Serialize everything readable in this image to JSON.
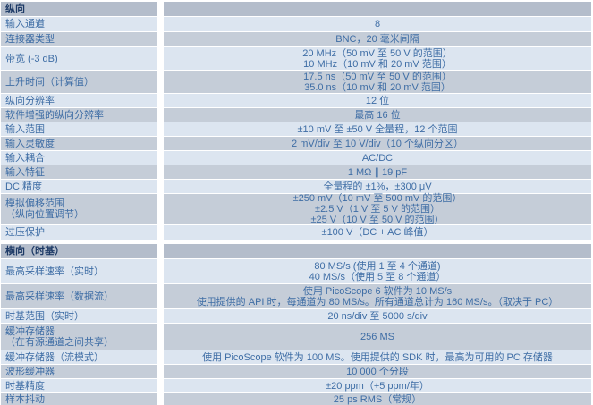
{
  "colors": {
    "header_bg": "#b4bdcb",
    "row_light_bg": "#dce5f0",
    "row_gray_bg": "#c5cdd8",
    "header_text": "#1d3a66",
    "cell_text": "#3e6da5",
    "divider": "#ffffff"
  },
  "sections": [
    {
      "header": "纵向",
      "rows": [
        {
          "label_lines": [
            "输入通道"
          ],
          "value_lines": [
            "8"
          ]
        },
        {
          "label_lines": [
            "连接器类型"
          ],
          "value_lines": [
            "BNC，20 毫米间隔"
          ]
        },
        {
          "label_lines": [
            "带宽 (-3 dB)"
          ],
          "value_lines": [
            "20 MHz（50 mV 至 50 V 的范围）",
            "10 MHz（10 mV 和 20 mV 范围）"
          ]
        },
        {
          "label_lines": [
            "上升时间（计算值）"
          ],
          "value_lines": [
            "17.5 ns（50 mV 至 50 V 的范围）",
            "35.0 ns（10 mV 和 20 mV 范围）"
          ]
        },
        {
          "label_lines": [
            "纵向分辨率"
          ],
          "value_lines": [
            "12 位"
          ]
        },
        {
          "label_lines": [
            "软件增强的纵向分辨率"
          ],
          "value_lines": [
            "最高 16 位"
          ]
        },
        {
          "label_lines": [
            "输入范围"
          ],
          "value_lines": [
            "±10 mV 至 ±50 V 全量程，12 个范围"
          ]
        },
        {
          "label_lines": [
            "输入灵敏度"
          ],
          "value_lines": [
            "2 mV/div 至 10 V/div（10 个纵向分区）"
          ]
        },
        {
          "label_lines": [
            "输入耦合"
          ],
          "value_lines": [
            "AC/DC"
          ]
        },
        {
          "label_lines": [
            "输入特征"
          ],
          "value_lines": [
            "1 MΩ ∥ 19 pF"
          ]
        },
        {
          "label_lines": [
            "DC 精度"
          ],
          "value_lines": [
            "全量程的 ±1%，±300 μV"
          ]
        },
        {
          "label_lines": [
            "模拟偏移范围",
            "（纵向位置调节）"
          ],
          "value_lines": [
            "±250 mV（10 mV 至 500 mV 的范围）",
            "±2.5 V（1 V 至 5 V 的范围）",
            "±25 V（10 V 至 50 V 的范围）"
          ]
        },
        {
          "label_lines": [
            "过压保护"
          ],
          "value_lines": [
            "±100 V（DC + AC 峰值）"
          ]
        }
      ]
    },
    {
      "header": "横向（时基）",
      "rows": [
        {
          "label_lines": [
            "最高采样速率（实时）"
          ],
          "value_lines": [
            "80 MS/s (使用 1 至 4 个通道)",
            "40 MS/s（使用 5 至 8 个通道）"
          ]
        },
        {
          "label_lines": [
            "最高采样速率（数据流）"
          ],
          "value_lines": [
            "使用 PicoScope 6 软件为 10 MS/s",
            "使用提供的 API 时，每通道为 80 MS/s。所有通道总计为 160 MS/s。（取决于 PC）"
          ]
        },
        {
          "label_lines": [
            "时基范围（实时）"
          ],
          "value_lines": [
            "20 ns/div 至 5000 s/div"
          ]
        },
        {
          "label_lines": [
            "缓冲存储器",
            "（在有源通道之间共享）"
          ],
          "value_lines": [
            "256 MS"
          ]
        },
        {
          "label_lines": [
            "缓冲存储器（流模式）"
          ],
          "value_lines": [
            "使用 PicoScope 软件为 100 MS。使用提供的 SDK 时，最高为可用的 PC 存储器"
          ]
        },
        {
          "label_lines": [
            "波形缓冲器"
          ],
          "value_lines": [
            "10 000 个分段"
          ]
        },
        {
          "label_lines": [
            "时基精度"
          ],
          "value_lines": [
            "±20 ppm（+5 ppm/年）"
          ]
        },
        {
          "label_lines": [
            "样本抖动"
          ],
          "value_lines": [
            "25 ps RMS（常规）"
          ]
        }
      ]
    }
  ]
}
